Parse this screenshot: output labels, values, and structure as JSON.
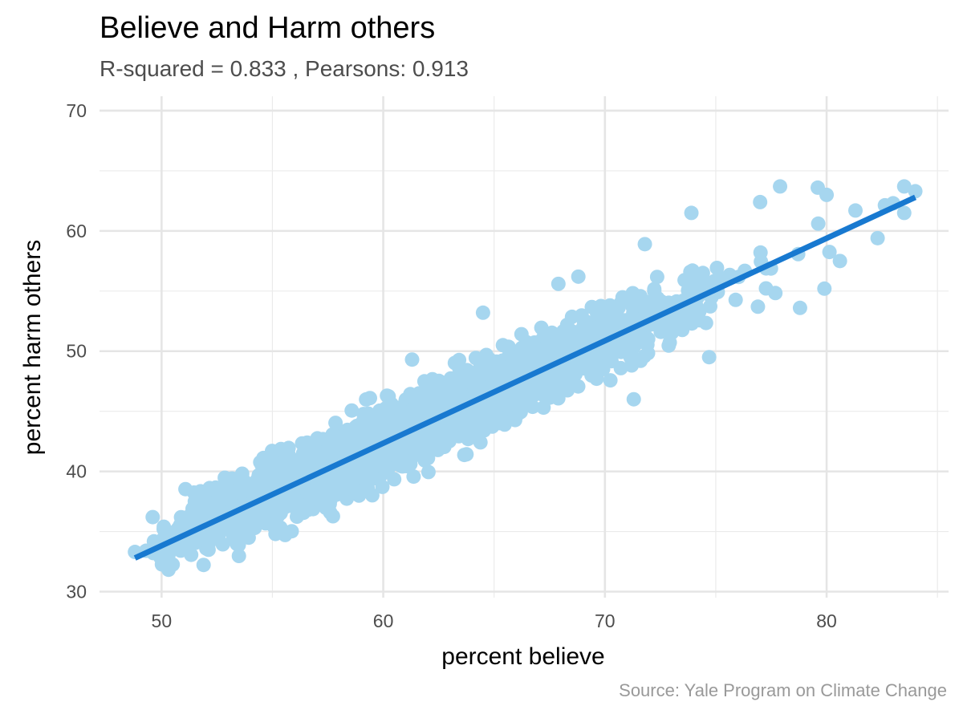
{
  "chart_data": {
    "type": "scatter",
    "title": "Believe and Harm others",
    "subtitle": "R-squared =  0.833 , Pearsons: 0.913",
    "caption": "Source: Yale Program on Climate Change",
    "xlabel": "percent believe",
    "ylabel": "percent harm others",
    "xlim": [
      47.2,
      85.5
    ],
    "ylim": [
      29.5,
      71.2
    ],
    "x_ticks": [
      50,
      60,
      70,
      80
    ],
    "y_ticks": [
      30,
      40,
      50,
      60,
      70
    ],
    "grid": true,
    "point_color": "#a6d6ef",
    "line_color": "#1879d0",
    "trend_line": {
      "x": [
        48.8,
        84.0
      ],
      "y": [
        32.8,
        62.8
      ]
    },
    "point_count": 3142,
    "fit_noise_sd": 1.3,
    "sample_points": [
      {
        "x": 48.8,
        "y": 33.3
      },
      {
        "x": 49.3,
        "y": 33.4
      },
      {
        "x": 49.6,
        "y": 36.2
      },
      {
        "x": 49.9,
        "y": 34.1
      },
      {
        "x": 50.1,
        "y": 35.4
      },
      {
        "x": 51.0,
        "y": 34.1
      },
      {
        "x": 51.2,
        "y": 35.1
      },
      {
        "x": 51.4,
        "y": 36.9
      },
      {
        "x": 51.5,
        "y": 37.5
      },
      {
        "x": 52.1,
        "y": 34.1
      },
      {
        "x": 52.4,
        "y": 37.4
      },
      {
        "x": 53.4,
        "y": 35.0
      },
      {
        "x": 54.2,
        "y": 35.3
      },
      {
        "x": 59.4,
        "y": 46.1
      },
      {
        "x": 61.3,
        "y": 49.3
      },
      {
        "x": 64.5,
        "y": 53.2
      },
      {
        "x": 67.9,
        "y": 55.6
      },
      {
        "x": 68.8,
        "y": 56.2
      },
      {
        "x": 71.3,
        "y": 46.0
      },
      {
        "x": 71.8,
        "y": 58.9
      },
      {
        "x": 73.9,
        "y": 61.5
      },
      {
        "x": 74.7,
        "y": 49.5
      },
      {
        "x": 76.9,
        "y": 53.7
      },
      {
        "x": 77.0,
        "y": 62.4
      },
      {
        "x": 77.9,
        "y": 63.7
      },
      {
        "x": 78.8,
        "y": 53.6
      },
      {
        "x": 79.6,
        "y": 63.6
      },
      {
        "x": 79.9,
        "y": 55.2
      },
      {
        "x": 80.0,
        "y": 63.0
      },
      {
        "x": 80.6,
        "y": 57.5
      },
      {
        "x": 81.3,
        "y": 61.7
      },
      {
        "x": 82.3,
        "y": 59.4
      },
      {
        "x": 83.0,
        "y": 62.3
      },
      {
        "x": 83.5,
        "y": 61.5
      },
      {
        "x": 83.5,
        "y": 63.7
      },
      {
        "x": 84.0,
        "y": 63.3
      }
    ]
  }
}
